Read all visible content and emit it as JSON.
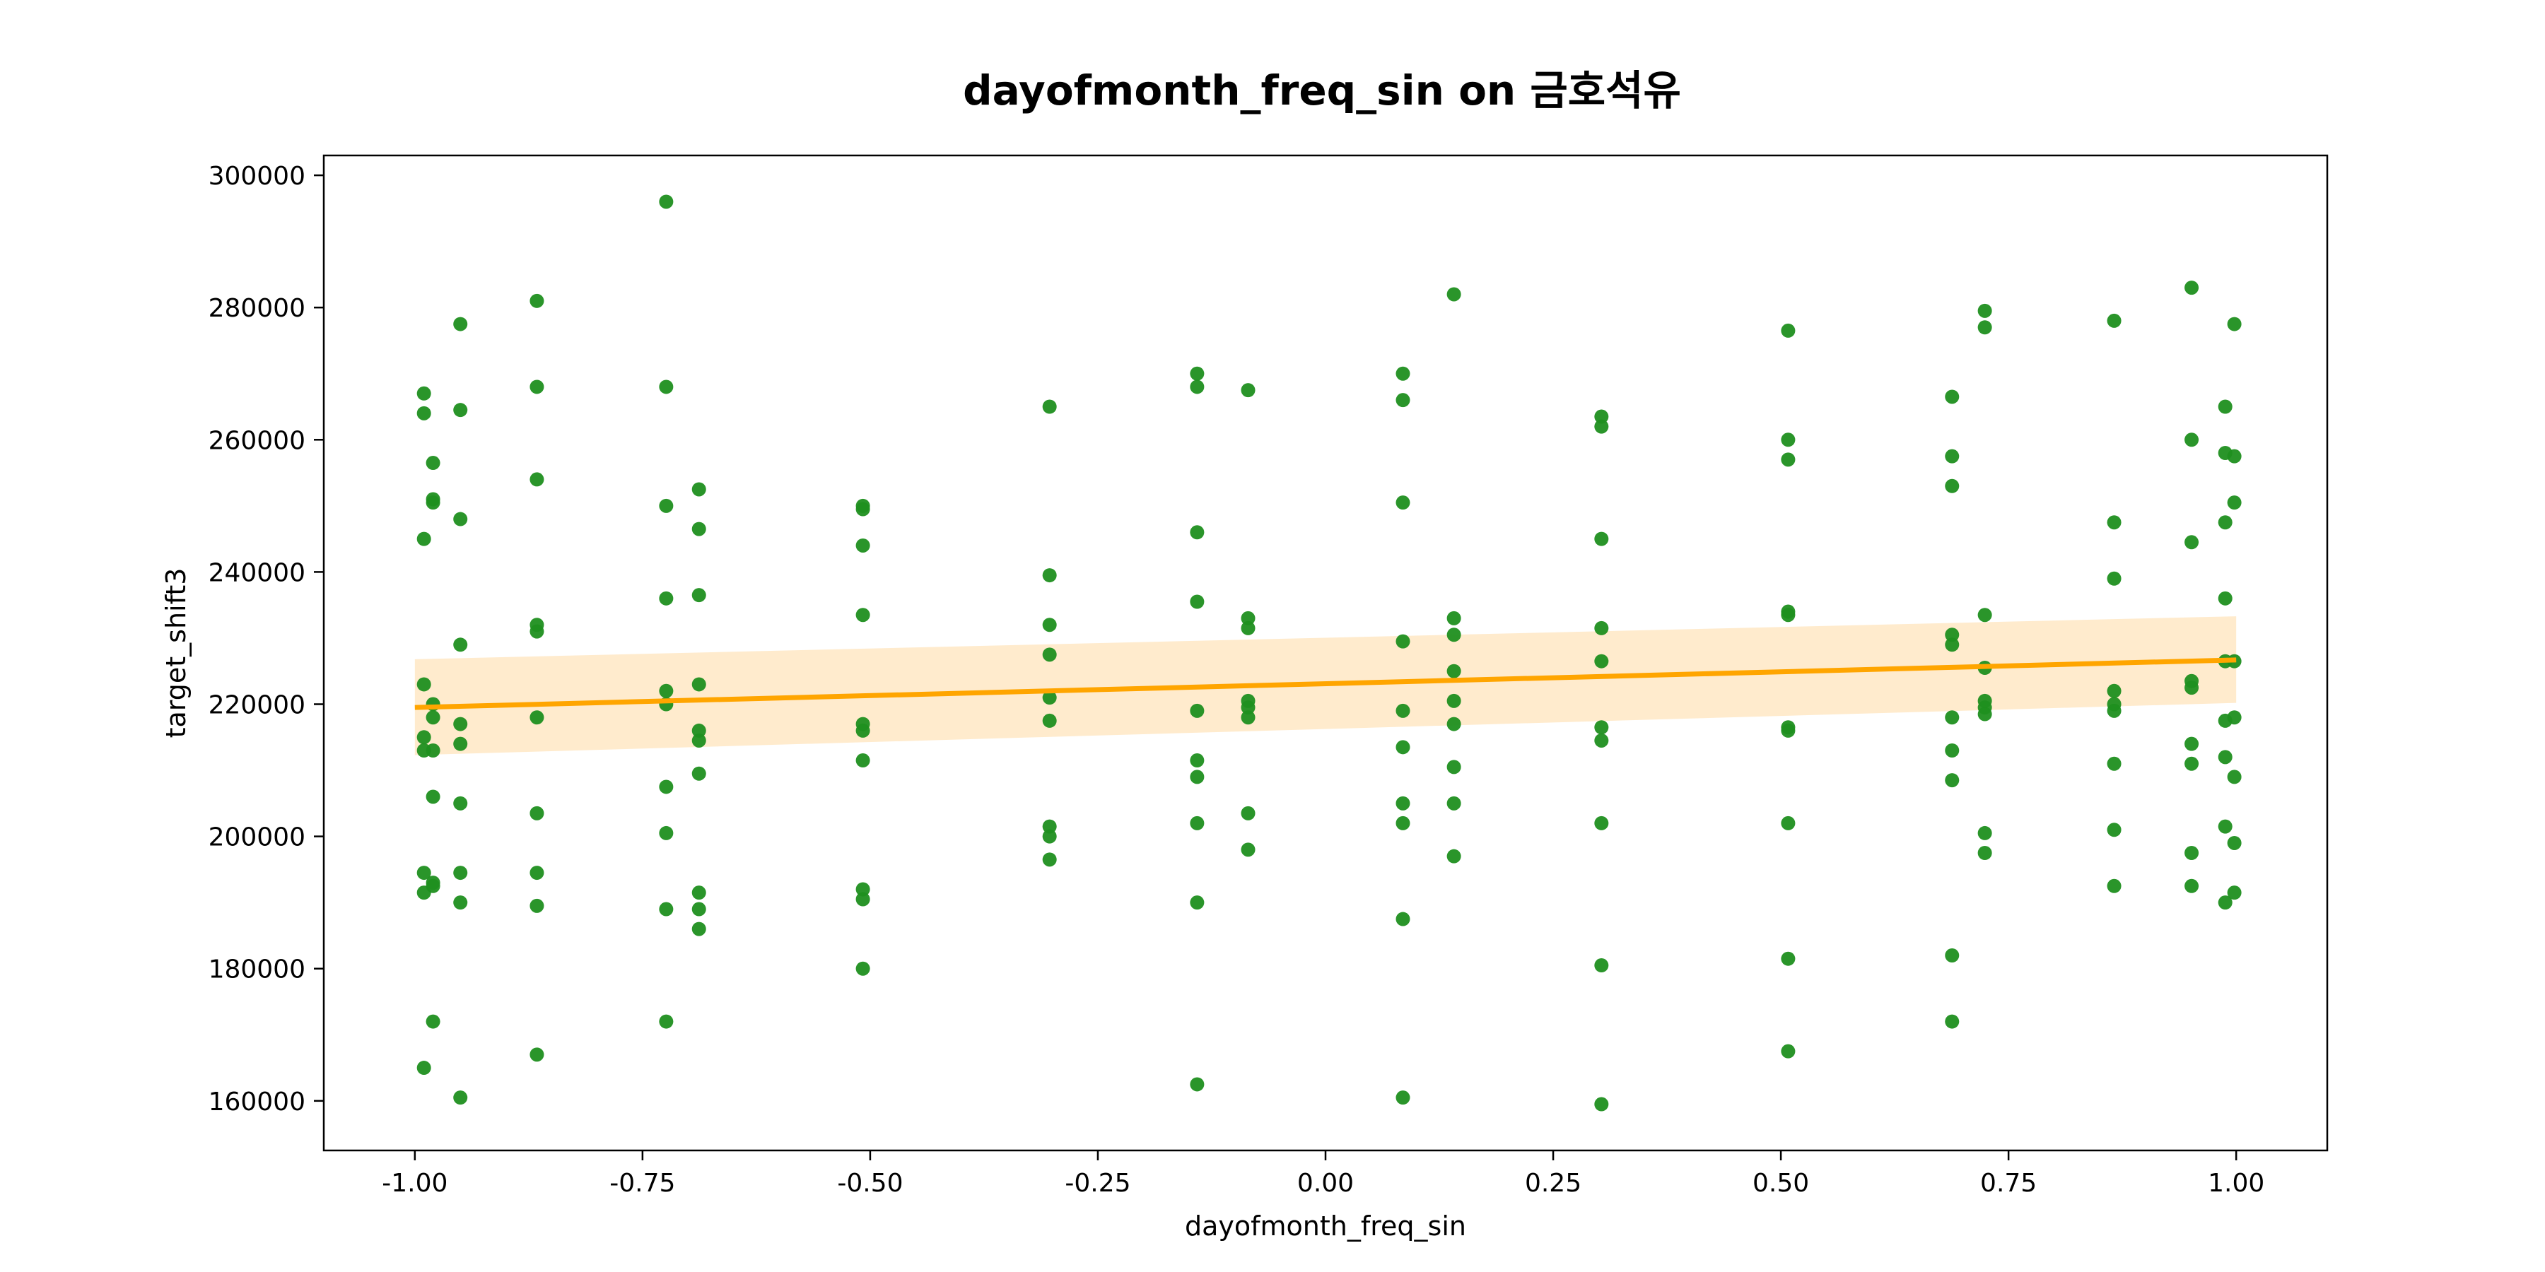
{
  "chart_data": {
    "type": "scatter",
    "title": "dayofmonth_freq_sin on 금호석유",
    "xlabel": "dayofmonth_freq_sin",
    "ylabel": "target_shift3",
    "xlim": [
      -1.1,
      1.1
    ],
    "ylim": [
      152500,
      303000
    ],
    "x_ticks": [
      -1.0,
      -0.75,
      -0.5,
      -0.25,
      0.0,
      0.25,
      0.5,
      0.75,
      1.0
    ],
    "x_tick_labels": [
      "-1.00",
      "-0.75",
      "-0.50",
      "-0.25",
      "0.00",
      "0.25",
      "0.50",
      "0.75",
      "1.00"
    ],
    "y_ticks": [
      160000,
      180000,
      200000,
      220000,
      240000,
      260000,
      280000,
      300000
    ],
    "y_tick_labels": [
      "160000",
      "180000",
      "200000",
      "220000",
      "240000",
      "260000",
      "280000",
      "300000"
    ],
    "grid": false,
    "colors": {
      "points": "#1f8f1f",
      "regression_line": "#ffa500",
      "confidence_band": "#ffe8c4"
    },
    "regression": {
      "x": [
        -1.0,
        1.0
      ],
      "y": [
        219500,
        226700
      ],
      "ci_lower": [
        212300,
        220200
      ],
      "ci_upper": [
        226800,
        233300
      ]
    },
    "points": [
      [
        -0.99,
        267000
      ],
      [
        -0.99,
        264000
      ],
      [
        -0.99,
        245000
      ],
      [
        -0.99,
        223000
      ],
      [
        -0.99,
        215000
      ],
      [
        -0.99,
        213000
      ],
      [
        -0.99,
        194500
      ],
      [
        -0.99,
        191500
      ],
      [
        -0.99,
        165000
      ],
      [
        -0.98,
        256500
      ],
      [
        -0.98,
        251000
      ],
      [
        -0.98,
        250500
      ],
      [
        -0.98,
        220000
      ],
      [
        -0.98,
        218000
      ],
      [
        -0.98,
        213000
      ],
      [
        -0.98,
        206000
      ],
      [
        -0.98,
        193000
      ],
      [
        -0.98,
        192500
      ],
      [
        -0.98,
        172000
      ],
      [
        -0.95,
        277500
      ],
      [
        -0.95,
        264500
      ],
      [
        -0.95,
        248000
      ],
      [
        -0.95,
        229000
      ],
      [
        -0.95,
        217000
      ],
      [
        -0.95,
        214000
      ],
      [
        -0.95,
        205000
      ],
      [
        -0.95,
        194500
      ],
      [
        -0.95,
        190000
      ],
      [
        -0.95,
        160500
      ],
      [
        -0.866,
        281000
      ],
      [
        -0.866,
        268000
      ],
      [
        -0.866,
        254000
      ],
      [
        -0.866,
        232000
      ],
      [
        -0.866,
        231000
      ],
      [
        -0.866,
        218000
      ],
      [
        -0.866,
        203500
      ],
      [
        -0.866,
        194500
      ],
      [
        -0.866,
        189500
      ],
      [
        -0.866,
        167000
      ],
      [
        -0.724,
        296000
      ],
      [
        -0.724,
        268000
      ],
      [
        -0.724,
        250000
      ],
      [
        -0.724,
        236000
      ],
      [
        -0.724,
        222000
      ],
      [
        -0.724,
        220000
      ],
      [
        -0.724,
        207500
      ],
      [
        -0.724,
        200500
      ],
      [
        -0.724,
        189000
      ],
      [
        -0.724,
        172000
      ],
      [
        -0.688,
        252500
      ],
      [
        -0.688,
        246500
      ],
      [
        -0.688,
        236500
      ],
      [
        -0.688,
        223000
      ],
      [
        -0.688,
        216000
      ],
      [
        -0.688,
        214500
      ],
      [
        -0.688,
        209500
      ],
      [
        -0.688,
        191500
      ],
      [
        -0.688,
        189000
      ],
      [
        -0.688,
        186000
      ],
      [
        -0.508,
        250000
      ],
      [
        -0.508,
        249500
      ],
      [
        -0.508,
        244000
      ],
      [
        -0.508,
        233500
      ],
      [
        -0.508,
        217000
      ],
      [
        -0.508,
        216000
      ],
      [
        -0.508,
        211500
      ],
      [
        -0.508,
        192000
      ],
      [
        -0.508,
        190500
      ],
      [
        -0.508,
        180000
      ],
      [
        -0.303,
        265000
      ],
      [
        -0.303,
        239500
      ],
      [
        -0.303,
        232000
      ],
      [
        -0.303,
        227500
      ],
      [
        -0.303,
        221000
      ],
      [
        -0.303,
        217500
      ],
      [
        -0.303,
        201500
      ],
      [
        -0.303,
        200000
      ],
      [
        -0.303,
        196500
      ],
      [
        -0.141,
        270000
      ],
      [
        -0.141,
        268000
      ],
      [
        -0.141,
        246000
      ],
      [
        -0.141,
        235500
      ],
      [
        -0.141,
        219000
      ],
      [
        -0.141,
        211500
      ],
      [
        -0.141,
        209000
      ],
      [
        -0.141,
        202000
      ],
      [
        -0.141,
        190000
      ],
      [
        -0.141,
        162500
      ],
      [
        -0.085,
        267500
      ],
      [
        -0.085,
        233000
      ],
      [
        -0.085,
        231500
      ],
      [
        -0.085,
        220500
      ],
      [
        -0.085,
        219500
      ],
      [
        -0.085,
        218000
      ],
      [
        -0.085,
        203500
      ],
      [
        -0.085,
        198000
      ],
      [
        0.085,
        270000
      ],
      [
        0.085,
        266000
      ],
      [
        0.085,
        250500
      ],
      [
        0.085,
        229500
      ],
      [
        0.085,
        219000
      ],
      [
        0.085,
        213500
      ],
      [
        0.085,
        205000
      ],
      [
        0.085,
        202000
      ],
      [
        0.085,
        187500
      ],
      [
        0.085,
        160500
      ],
      [
        0.141,
        282000
      ],
      [
        0.141,
        233000
      ],
      [
        0.141,
        230500
      ],
      [
        0.141,
        225000
      ],
      [
        0.141,
        220500
      ],
      [
        0.141,
        217000
      ],
      [
        0.141,
        210500
      ],
      [
        0.141,
        205000
      ],
      [
        0.141,
        197000
      ],
      [
        0.303,
        263500
      ],
      [
        0.303,
        262000
      ],
      [
        0.303,
        245000
      ],
      [
        0.303,
        231500
      ],
      [
        0.303,
        226500
      ],
      [
        0.303,
        216500
      ],
      [
        0.303,
        214500
      ],
      [
        0.303,
        202000
      ],
      [
        0.303,
        180500
      ],
      [
        0.303,
        159500
      ],
      [
        0.508,
        276500
      ],
      [
        0.508,
        260000
      ],
      [
        0.508,
        257000
      ],
      [
        0.508,
        234000
      ],
      [
        0.508,
        233500
      ],
      [
        0.508,
        216500
      ],
      [
        0.508,
        216000
      ],
      [
        0.508,
        202000
      ],
      [
        0.508,
        181500
      ],
      [
        0.508,
        167500
      ],
      [
        0.688,
        266500
      ],
      [
        0.688,
        257500
      ],
      [
        0.688,
        253000
      ],
      [
        0.688,
        230500
      ],
      [
        0.688,
        229000
      ],
      [
        0.688,
        218000
      ],
      [
        0.688,
        213000
      ],
      [
        0.688,
        208500
      ],
      [
        0.688,
        182000
      ],
      [
        0.688,
        172000
      ],
      [
        0.724,
        279500
      ],
      [
        0.724,
        277000
      ],
      [
        0.724,
        233500
      ],
      [
        0.724,
        225500
      ],
      [
        0.724,
        220500
      ],
      [
        0.724,
        219500
      ],
      [
        0.724,
        218500
      ],
      [
        0.724,
        200500
      ],
      [
        0.724,
        197500
      ],
      [
        0.866,
        278000
      ],
      [
        0.866,
        247500
      ],
      [
        0.866,
        239000
      ],
      [
        0.866,
        222000
      ],
      [
        0.866,
        220000
      ],
      [
        0.866,
        219000
      ],
      [
        0.866,
        211000
      ],
      [
        0.866,
        201000
      ],
      [
        0.866,
        192500
      ],
      [
        0.951,
        283000
      ],
      [
        0.951,
        260000
      ],
      [
        0.951,
        244500
      ],
      [
        0.951,
        223500
      ],
      [
        0.951,
        222500
      ],
      [
        0.951,
        214000
      ],
      [
        0.951,
        211000
      ],
      [
        0.951,
        197500
      ],
      [
        0.951,
        192500
      ],
      [
        0.988,
        265000
      ],
      [
        0.988,
        258000
      ],
      [
        0.988,
        247500
      ],
      [
        0.988,
        236000
      ],
      [
        0.988,
        226500
      ],
      [
        0.988,
        217500
      ],
      [
        0.988,
        212000
      ],
      [
        0.988,
        201500
      ],
      [
        0.988,
        190000
      ],
      [
        0.998,
        277500
      ],
      [
        0.998,
        257500
      ],
      [
        0.998,
        250500
      ],
      [
        0.998,
        226500
      ],
      [
        0.998,
        218000
      ],
      [
        0.998,
        209000
      ],
      [
        0.998,
        199000
      ],
      [
        0.998,
        191500
      ]
    ]
  }
}
